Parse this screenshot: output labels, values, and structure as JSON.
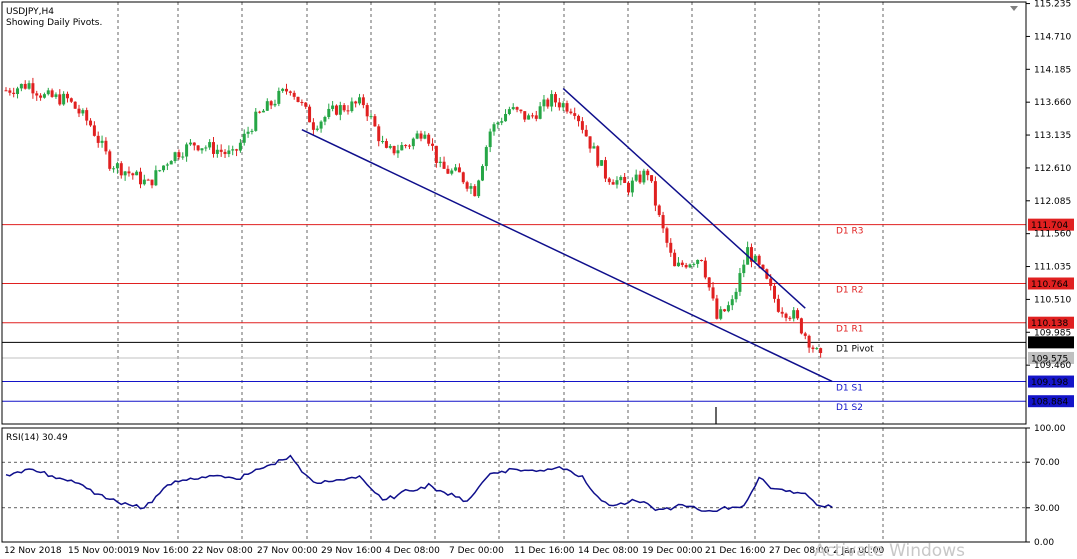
{
  "header": {
    "symbol": "USDJPY,H4",
    "subtitle": "Showing Daily Pivots."
  },
  "watermark": "Activate Windows",
  "colors": {
    "bull": "#26a646",
    "bear": "#e02020",
    "trendline": "#0f0f8c",
    "resistance": "#e02020",
    "pivot": "#000000",
    "support": "#1414c8",
    "rsi": "#0f0f8c"
  },
  "chart_data": [
    {
      "type": "candlestick",
      "title": "USDJPY,H4",
      "ylim": [
        108.52,
        115.26
      ],
      "yticks": [
        "115.235",
        "114.710",
        "114.185",
        "113.660",
        "113.135",
        "112.610",
        "112.085",
        "111.560",
        "111.035",
        "110.510",
        "109.985",
        "109.460"
      ],
      "x_tick_labels": [
        "12 Nov 2018",
        "15 Nov 00:00",
        "19 Nov 16:00",
        "22 Nov 08:00",
        "27 Nov 00:00",
        "29 Nov 16:00",
        "4 Dec 08:00",
        "7 Dec 00:00",
        "11 Dec 16:00",
        "14 Dec 08:00",
        "19 Dec 00:00",
        "21 Dec 16:00",
        "27 Dec 08:00",
        "2 Jan 00:00"
      ],
      "price_path": [
        {
          "i": 0,
          "p": 113.85
        },
        {
          "i": 6,
          "p": 113.95
        },
        {
          "i": 10,
          "p": 113.75
        },
        {
          "i": 16,
          "p": 113.7
        },
        {
          "i": 22,
          "p": 113.3
        },
        {
          "i": 27,
          "p": 112.7
        },
        {
          "i": 33,
          "p": 112.5
        },
        {
          "i": 37,
          "p": 112.35
        },
        {
          "i": 43,
          "p": 112.8
        },
        {
          "i": 49,
          "p": 113.0
        },
        {
          "i": 55,
          "p": 112.9
        },
        {
          "i": 59,
          "p": 112.8
        },
        {
          "i": 65,
          "p": 113.4
        },
        {
          "i": 71,
          "p": 113.75
        },
        {
          "i": 74,
          "p": 113.9
        },
        {
          "i": 80,
          "p": 113.3
        },
        {
          "i": 86,
          "p": 113.55
        },
        {
          "i": 93,
          "p": 113.65
        },
        {
          "i": 99,
          "p": 112.85
        },
        {
          "i": 105,
          "p": 113.0
        },
        {
          "i": 109,
          "p": 113.25
        },
        {
          "i": 113,
          "p": 112.6
        },
        {
          "i": 118,
          "p": 112.5
        },
        {
          "i": 122,
          "p": 112.25
        },
        {
          "i": 126,
          "p": 113.2
        },
        {
          "i": 131,
          "p": 113.55
        },
        {
          "i": 136,
          "p": 113.4
        },
        {
          "i": 142,
          "p": 113.7
        },
        {
          "i": 148,
          "p": 113.55
        },
        {
          "i": 152,
          "p": 113.0
        },
        {
          "i": 156,
          "p": 112.5
        },
        {
          "i": 162,
          "p": 112.3
        },
        {
          "i": 167,
          "p": 112.55
        },
        {
          "i": 170,
          "p": 111.8
        },
        {
          "i": 174,
          "p": 111.0
        },
        {
          "i": 177,
          "p": 111.1
        },
        {
          "i": 181,
          "p": 111.2
        },
        {
          "i": 185,
          "p": 110.2
        },
        {
          "i": 189,
          "p": 110.45
        },
        {
          "i": 193,
          "p": 111.3
        },
        {
          "i": 197,
          "p": 110.9
        },
        {
          "i": 201,
          "p": 110.4
        },
        {
          "i": 205,
          "p": 110.25
        },
        {
          "i": 208,
          "p": 109.95
        },
        {
          "i": 212,
          "p": 109.55
        }
      ],
      "trendlines": [
        {
          "start": {
            "i": 77,
            "p": 113.22
          },
          "end": {
            "i": 215,
            "p": 109.2
          }
        },
        {
          "start": {
            "i": 145,
            "p": 113.88
          },
          "end": {
            "i": 208,
            "p": 110.37
          }
        }
      ],
      "levels": [
        {
          "name": "D1 R3",
          "value": 111.704,
          "kind": "resistance"
        },
        {
          "name": "D1 R2",
          "value": 110.764,
          "kind": "resistance"
        },
        {
          "name": "D1 R1",
          "value": 110.138,
          "kind": "resistance"
        },
        {
          "name": "D1 Pivot",
          "value": 109.824,
          "kind": "pivot"
        },
        {
          "name": "D1 S1",
          "value": 109.198,
          "kind": "support"
        },
        {
          "name": "D1 S2",
          "value": 108.884,
          "kind": "support"
        }
      ],
      "last_price": "109.575"
    },
    {
      "type": "line",
      "title": "RSI(14) 30.49",
      "ylim": [
        0,
        100
      ],
      "yticks": [
        "100.00",
        "70.00",
        "30.00",
        "0.00"
      ],
      "guide_levels": [
        70,
        30
      ],
      "series": [
        {
          "name": "RSI(14)",
          "points": [
            {
              "i": 0,
              "v": 59
            },
            {
              "i": 6,
              "v": 64
            },
            {
              "i": 12,
              "v": 58
            },
            {
              "i": 18,
              "v": 52
            },
            {
              "i": 24,
              "v": 42
            },
            {
              "i": 30,
              "v": 33
            },
            {
              "i": 36,
              "v": 30
            },
            {
              "i": 42,
              "v": 50
            },
            {
              "i": 48,
              "v": 56
            },
            {
              "i": 54,
              "v": 58
            },
            {
              "i": 60,
              "v": 55
            },
            {
              "i": 66,
              "v": 64
            },
            {
              "i": 72,
              "v": 72
            },
            {
              "i": 74,
              "v": 75
            },
            {
              "i": 80,
              "v": 51
            },
            {
              "i": 86,
              "v": 54
            },
            {
              "i": 92,
              "v": 58
            },
            {
              "i": 98,
              "v": 36
            },
            {
              "i": 104,
              "v": 44
            },
            {
              "i": 110,
              "v": 50
            },
            {
              "i": 115,
              "v": 42
            },
            {
              "i": 120,
              "v": 36
            },
            {
              "i": 126,
              "v": 60
            },
            {
              "i": 132,
              "v": 64
            },
            {
              "i": 138,
              "v": 62
            },
            {
              "i": 144,
              "v": 66
            },
            {
              "i": 150,
              "v": 58
            },
            {
              "i": 154,
              "v": 38
            },
            {
              "i": 158,
              "v": 32
            },
            {
              "i": 164,
              "v": 36
            },
            {
              "i": 170,
              "v": 28
            },
            {
              "i": 176,
              "v": 32
            },
            {
              "i": 182,
              "v": 27
            },
            {
              "i": 188,
              "v": 30
            },
            {
              "i": 192,
              "v": 32
            },
            {
              "i": 196,
              "v": 55
            },
            {
              "i": 200,
              "v": 47
            },
            {
              "i": 204,
              "v": 45
            },
            {
              "i": 208,
              "v": 42
            },
            {
              "i": 212,
              "v": 31
            },
            {
              "i": 215,
              "v": 30.49
            }
          ]
        }
      ]
    }
  ]
}
